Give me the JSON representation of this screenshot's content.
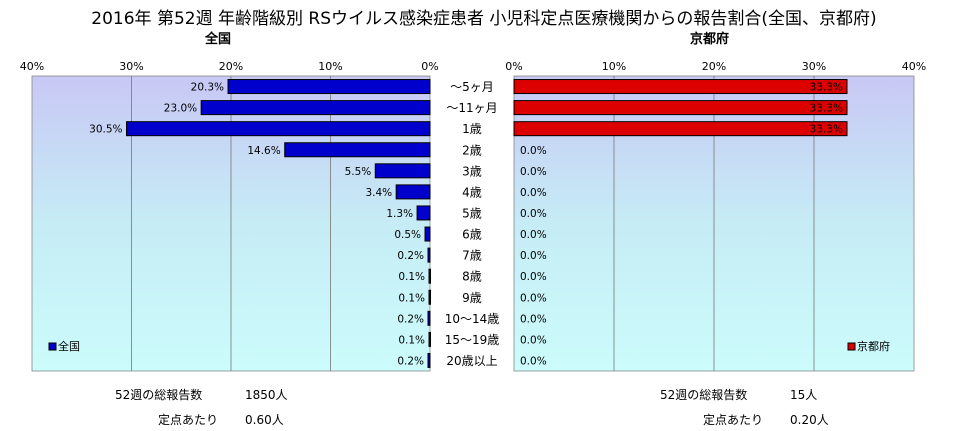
{
  "title": "2016年 第52週 年齢階級別 RSウイルス感染症患者 小児科定点医療機関からの報告割合(全国、京都府)",
  "chart_data": [
    {
      "type": "bar",
      "orientation": "horizontal",
      "title": "全国",
      "categories": [
        "～5ヶ月",
        "～11ヶ月",
        "1歳",
        "2歳",
        "3歳",
        "4歳",
        "5歳",
        "6歳",
        "7歳",
        "8歳",
        "9歳",
        "10～14歳",
        "15～19歳",
        "20歳以上"
      ],
      "series": [
        {
          "name": "全国",
          "color": "#0000cc",
          "values": [
            20.3,
            23.0,
            30.5,
            14.6,
            5.5,
            3.4,
            1.3,
            0.5,
            0.2,
            0.1,
            0.1,
            0.2,
            0.1,
            0.2
          ],
          "labels": [
            "20.3%",
            "23.0%",
            "30.5%",
            "14.6%",
            "5.5%",
            "3.4%",
            "1.3%",
            "0.5%",
            "0.2%",
            "0.1%",
            "0.1%",
            "0.2%",
            "0.1%",
            "0.2%"
          ]
        }
      ],
      "xlim": [
        0,
        40
      ],
      "ticks": [
        "0%",
        "10%",
        "20%",
        "30%",
        "40%"
      ],
      "reversed": true,
      "legend": "bottom-left",
      "grid": true
    },
    {
      "type": "bar",
      "orientation": "horizontal",
      "title": "京都府",
      "categories": [
        "～5ヶ月",
        "～11ヶ月",
        "1歳",
        "2歳",
        "3歳",
        "4歳",
        "5歳",
        "6歳",
        "7歳",
        "8歳",
        "9歳",
        "10～14歳",
        "15～19歳",
        "20歳以上"
      ],
      "series": [
        {
          "name": "京都府",
          "color": "#dd0000",
          "values": [
            33.3,
            33.3,
            33.3,
            0,
            0,
            0,
            0,
            0,
            0,
            0,
            0,
            0,
            0,
            0
          ],
          "labels": [
            "33.3%",
            "33.3%",
            "33.3%",
            "0.0%",
            "0.0%",
            "0.0%",
            "0.0%",
            "0.0%",
            "0.0%",
            "0.0%",
            "0.0%",
            "0.0%",
            "0.0%",
            "0.0%"
          ]
        }
      ],
      "xlim": [
        0,
        40
      ],
      "ticks": [
        "0%",
        "10%",
        "20%",
        "30%",
        "40%"
      ],
      "reversed": false,
      "legend": "bottom-right",
      "grid": true
    }
  ],
  "footer": {
    "national": {
      "total_label": "52週の総報告数",
      "total_value": "1850人",
      "per_label": "定点あたり",
      "per_value": "0.60人"
    },
    "kyoto": {
      "total_label": "52週の総報告数",
      "total_value": "15人",
      "per_label": "定点あたり",
      "per_value": "0.20人"
    }
  }
}
